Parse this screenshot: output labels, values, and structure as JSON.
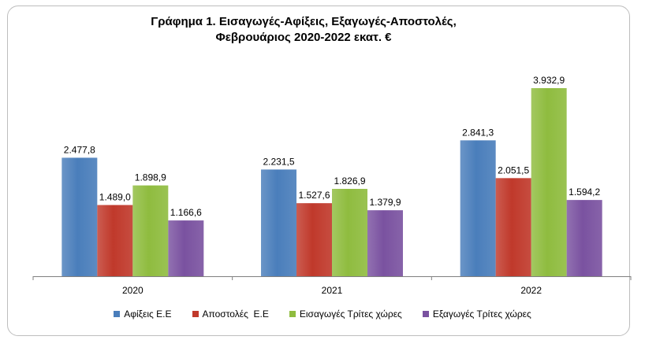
{
  "chart_data": {
    "type": "bar",
    "title_lines": [
      "Γράφημα 1. Εισαγωγές-Αφίξεις, Εξαγωγές-Αποστολές,",
      "Φεβρουάριος 2020-2022 εκατ. €"
    ],
    "categories": [
      "2020",
      "2021",
      "2022"
    ],
    "series": [
      {
        "name": "Αφίξεις Ε.Ε",
        "values": [
          2477.8,
          2231.5,
          2841.3
        ],
        "labels": [
          "2.477,8",
          "2.231,5",
          "2.841,3"
        ],
        "color": "#4a7ebb"
      },
      {
        "name": "Αποστολές  Ε.Ε",
        "values": [
          1489.0,
          1527.6,
          2051.5
        ],
        "labels": [
          "1.489,0",
          "1.527,6",
          "2.051,5"
        ],
        "color": "#c0392b"
      },
      {
        "name": "Εισαγωγές Τρίτες χώρες",
        "values": [
          1898.9,
          1826.9,
          3932.9
        ],
        "labels": [
          "1.898,9",
          "1.826,9",
          "3.932,9"
        ],
        "color": "#8fbc3f"
      },
      {
        "name": "Εξαγωγές Τρίτες χώρες",
        "values": [
          1166.6,
          1379.9,
          1594.2
        ],
        "labels": [
          "1.166,6",
          "1.379,9",
          "1.594,2"
        ],
        "color": "#7a52a0"
      }
    ],
    "ylim": [
      0,
      4500
    ],
    "grid": false,
    "legend_position": "bottom"
  }
}
